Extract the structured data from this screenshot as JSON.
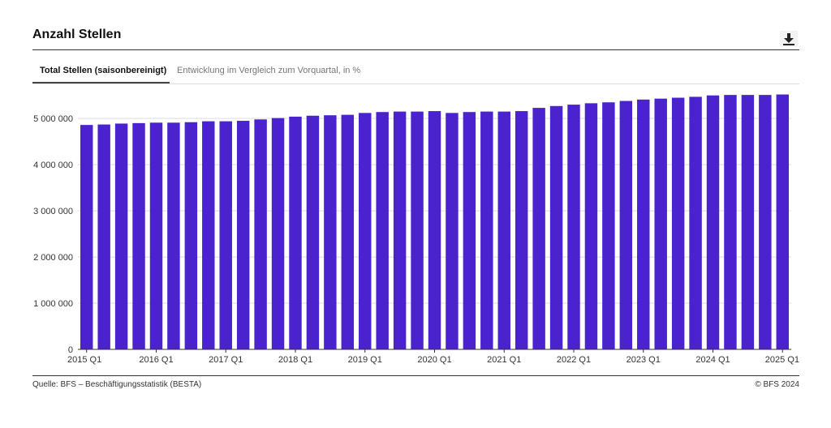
{
  "header": {
    "title": "Anzahl Stellen",
    "download_icon": "download-icon"
  },
  "tabs": [
    {
      "label": "Total Stellen (saisonbereinigt)",
      "active": true
    },
    {
      "label": "Entwicklung im Vergleich zum Vorquartal, in %",
      "active": false
    }
  ],
  "footer": {
    "source": "Quelle: BFS – Beschäftigungsstatistik (BESTA)",
    "copyright": "© BFS 2024"
  },
  "colors": {
    "bar": "#4a23cf",
    "grid": "#dddddd",
    "axis": "#333333"
  },
  "chart_data": {
    "type": "bar",
    "title": "",
    "xlabel": "",
    "ylabel": "",
    "ylim": [
      0,
      5600000
    ],
    "yticks": [
      0,
      1000000,
      2000000,
      3000000,
      4000000,
      5000000
    ],
    "ytick_labels": [
      "0",
      "1 000 000",
      "2 000 000",
      "3 000 000",
      "4 000 000",
      "5 000 000"
    ],
    "xtick_labels": [
      "2015 Q1",
      "2016 Q1",
      "2017 Q1",
      "2018 Q1",
      "2019 Q1",
      "2020 Q1",
      "2021 Q1",
      "2022 Q1",
      "2023 Q1",
      "2024 Q1",
      "2025 Q1"
    ],
    "grid": true,
    "legend": "none",
    "categories": [
      "2015 Q1",
      "2015 Q2",
      "2015 Q3",
      "2015 Q4",
      "2016 Q1",
      "2016 Q2",
      "2016 Q3",
      "2016 Q4",
      "2017 Q1",
      "2017 Q2",
      "2017 Q3",
      "2017 Q4",
      "2018 Q1",
      "2018 Q2",
      "2018 Q3",
      "2018 Q4",
      "2019 Q1",
      "2019 Q2",
      "2019 Q3",
      "2019 Q4",
      "2020 Q1",
      "2020 Q2",
      "2020 Q3",
      "2020 Q4",
      "2021 Q1",
      "2021 Q2",
      "2021 Q3",
      "2021 Q4",
      "2022 Q1",
      "2022 Q2",
      "2022 Q3",
      "2022 Q4",
      "2023 Q1",
      "2023 Q2",
      "2023 Q3",
      "2023 Q4",
      "2024 Q1",
      "2024 Q2",
      "2024 Q3",
      "2024 Q4",
      "2025 Q1"
    ],
    "values": [
      4860000,
      4870000,
      4890000,
      4900000,
      4910000,
      4910000,
      4920000,
      4940000,
      4940000,
      4950000,
      4980000,
      5010000,
      5040000,
      5060000,
      5070000,
      5080000,
      5120000,
      5140000,
      5150000,
      5150000,
      5160000,
      5120000,
      5140000,
      5150000,
      5150000,
      5160000,
      5230000,
      5270000,
      5300000,
      5330000,
      5350000,
      5380000,
      5410000,
      5430000,
      5450000,
      5470000,
      5500000,
      5510000,
      5510000,
      5510000,
      5520000
    ]
  }
}
